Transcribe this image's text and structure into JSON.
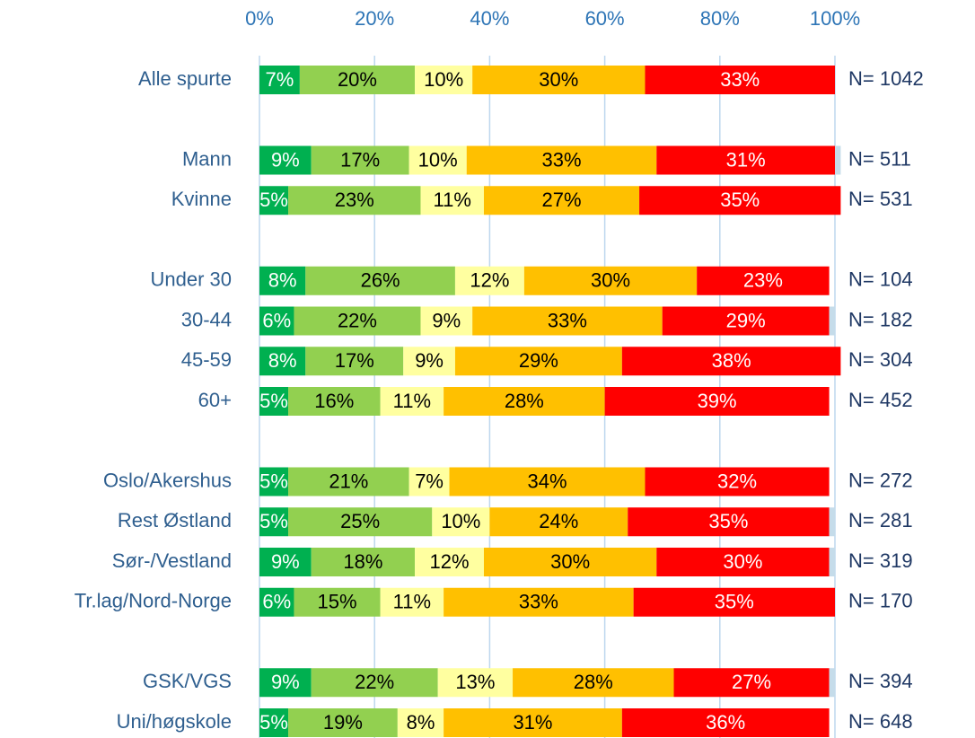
{
  "chart_data": {
    "type": "stacked_barh",
    "categories": [
      "Alle spurte",
      null,
      "Mann",
      "Kvinne",
      null,
      "Under 30",
      "30-44",
      "45-59",
      "60+",
      null,
      "Oslo/Akershus",
      "Rest Østland",
      "Sør-/Vestland",
      "Tr.lag/Nord-Norge",
      null,
      "GSK/VGS",
      "Uni/høgskole"
    ],
    "n_labels": [
      "N= 1042",
      null,
      "N= 511",
      "N= 531",
      null,
      "N= 104",
      "N= 182",
      "N= 304",
      "N= 452",
      null,
      "N= 272",
      "N= 281",
      "N= 319",
      "N= 170",
      null,
      "N= 394",
      "N= 648"
    ],
    "series": [
      {
        "color": "#00b050",
        "label_color": "#ffffff",
        "values": [
          7,
          null,
          9,
          5,
          null,
          8,
          6,
          8,
          5,
          null,
          5,
          5,
          9,
          6,
          null,
          9,
          5
        ],
        "value_labels": [
          "7%",
          null,
          "9%",
          "5%",
          null,
          "8%",
          "6%",
          "8%",
          "5%",
          null,
          "5%",
          "5%",
          "9%",
          "6%",
          null,
          "9%",
          "5%"
        ]
      },
      {
        "color": "#92d050",
        "label_color": "#000000",
        "values": [
          20,
          null,
          17,
          23,
          null,
          26,
          22,
          17,
          16,
          null,
          21,
          25,
          18,
          15,
          null,
          22,
          19
        ],
        "value_labels": [
          "20%",
          null,
          "17%",
          "23%",
          null,
          "26%",
          "22%",
          "17%",
          "16%",
          null,
          "21%",
          "25%",
          "18%",
          "15%",
          null,
          "22%",
          "19%"
        ]
      },
      {
        "color": "#ffffa0",
        "label_color": "#000000",
        "values": [
          10,
          null,
          10,
          11,
          null,
          12,
          9,
          9,
          11,
          null,
          7,
          10,
          12,
          11,
          null,
          13,
          8
        ],
        "value_labels": [
          "10%",
          null,
          "10%",
          "11%",
          null,
          "12%",
          "9%",
          "9%",
          "11%",
          null,
          "7%",
          "10%",
          "12%",
          "11%",
          null,
          "13%",
          "8%"
        ]
      },
      {
        "color": "#ffc000",
        "label_color": "#000000",
        "values": [
          30,
          null,
          33,
          27,
          null,
          30,
          33,
          29,
          28,
          null,
          34,
          24,
          30,
          33,
          null,
          28,
          31
        ],
        "value_labels": [
          "30%",
          null,
          "33%",
          "27%",
          null,
          "30%",
          "33%",
          "29%",
          "28%",
          null,
          "34%",
          "24%",
          "30%",
          "33%",
          null,
          "28%",
          "31%"
        ]
      },
      {
        "color": "#ff0000",
        "label_color": "#ffffff",
        "values": [
          33,
          null,
          31,
          35,
          null,
          23,
          29,
          38,
          39,
          null,
          32,
          35,
          30,
          35,
          null,
          27,
          36
        ],
        "value_labels": [
          "33%",
          null,
          "31%",
          "35%",
          null,
          "23%",
          "29%",
          "38%",
          "39%",
          null,
          "32%",
          "35%",
          "30%",
          "35%",
          null,
          "27%",
          "36%"
        ]
      },
      {
        "color": "#c5dcea",
        "values": [
          0,
          null,
          1,
          0,
          null,
          0,
          1,
          0,
          0,
          null,
          0,
          1,
          1,
          0,
          null,
          1,
          0
        ]
      }
    ],
    "xlim": [
      0,
      100
    ],
    "xticks": [
      {
        "value": 0,
        "label": "0%"
      },
      {
        "value": 20,
        "label": "20%"
      },
      {
        "value": 40,
        "label": "40%"
      },
      {
        "value": 60,
        "label": "60%"
      },
      {
        "value": 80,
        "label": "80%"
      },
      {
        "value": 100,
        "label": "100%"
      }
    ],
    "grid": true,
    "grid_color": "#bdd7ee"
  }
}
